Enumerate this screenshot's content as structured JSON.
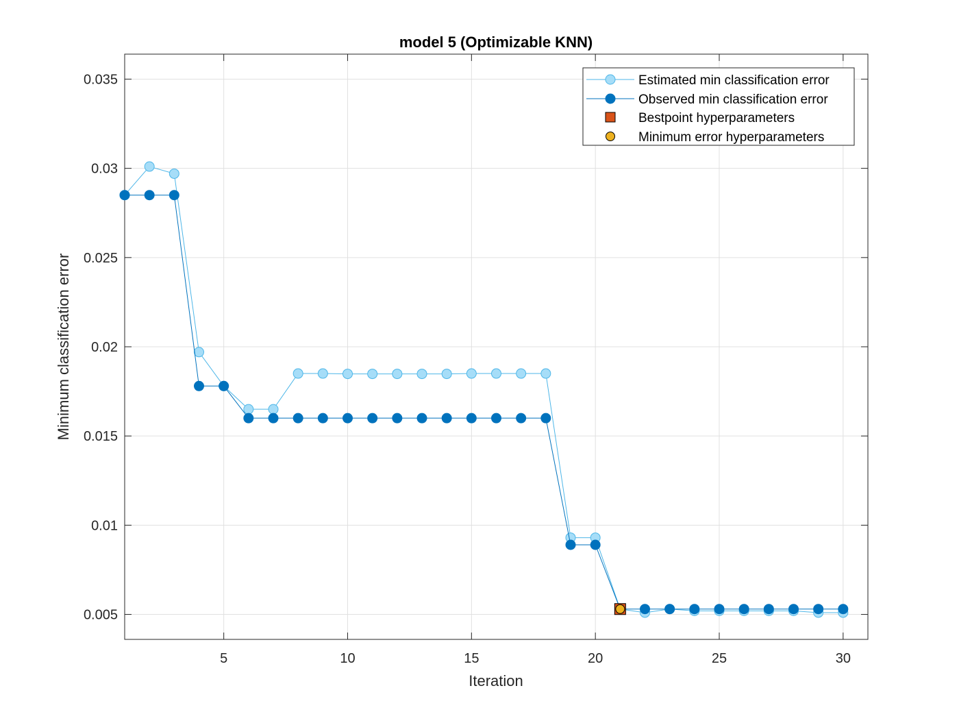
{
  "chart_data": {
    "type": "line",
    "title": "model 5 (Optimizable KNN)",
    "xlabel": "Iteration",
    "ylabel": "Minimum classification error",
    "xlim": [
      1,
      31
    ],
    "ylim": [
      0.0036,
      0.0364
    ],
    "xticks": [
      5,
      10,
      15,
      20,
      25,
      30
    ],
    "yticks": [
      0.005,
      0.01,
      0.015,
      0.02,
      0.025,
      0.03,
      0.035
    ],
    "ytick_labels": [
      "0.005",
      "0.01",
      "0.015",
      "0.02",
      "0.025",
      "0.03",
      "0.035"
    ],
    "grid": true,
    "legend_position": "top-right",
    "colors": {
      "estimated_line": "#4DB6E8",
      "estimated_fill": "#A6DDF8",
      "observed": "#0072BD",
      "bestpoint": "#D95319",
      "minerror": "#EDB120",
      "grid": "#e0e0e0",
      "axis": "#262626"
    },
    "x": [
      1,
      2,
      3,
      4,
      5,
      6,
      7,
      8,
      9,
      10,
      11,
      12,
      13,
      14,
      15,
      16,
      17,
      18,
      19,
      20,
      21,
      22,
      23,
      24,
      25,
      26,
      27,
      28,
      29,
      30
    ],
    "series": [
      {
        "name": "Estimated min classification error",
        "values": [
          0.0285,
          0.0301,
          0.0297,
          0.0197,
          0.0178,
          0.0165,
          0.0165,
          0.0185,
          0.0185,
          0.01848,
          0.01848,
          0.01848,
          0.01848,
          0.01848,
          0.0185,
          0.0185,
          0.0185,
          0.0185,
          0.0093,
          0.0093,
          0.0053,
          0.0051,
          0.0053,
          0.0052,
          0.0052,
          0.0052,
          0.0052,
          0.0052,
          0.0051,
          0.0051
        ]
      },
      {
        "name": "Observed min classification error",
        "values": [
          0.0285,
          0.0285,
          0.0285,
          0.0178,
          0.0178,
          0.016,
          0.016,
          0.016,
          0.016,
          0.016,
          0.016,
          0.016,
          0.016,
          0.016,
          0.016,
          0.016,
          0.016,
          0.016,
          0.0089,
          0.0089,
          0.0053,
          0.0053,
          0.0053,
          0.0053,
          0.0053,
          0.0053,
          0.0053,
          0.0053,
          0.0053,
          0.0053
        ]
      }
    ],
    "bestpoint": {
      "name": "Bestpoint hyperparameters",
      "x": 21,
      "y": 0.0053
    },
    "minerror": {
      "name": "Minimum error hyperparameters",
      "x": 21,
      "y": 0.0053
    }
  }
}
